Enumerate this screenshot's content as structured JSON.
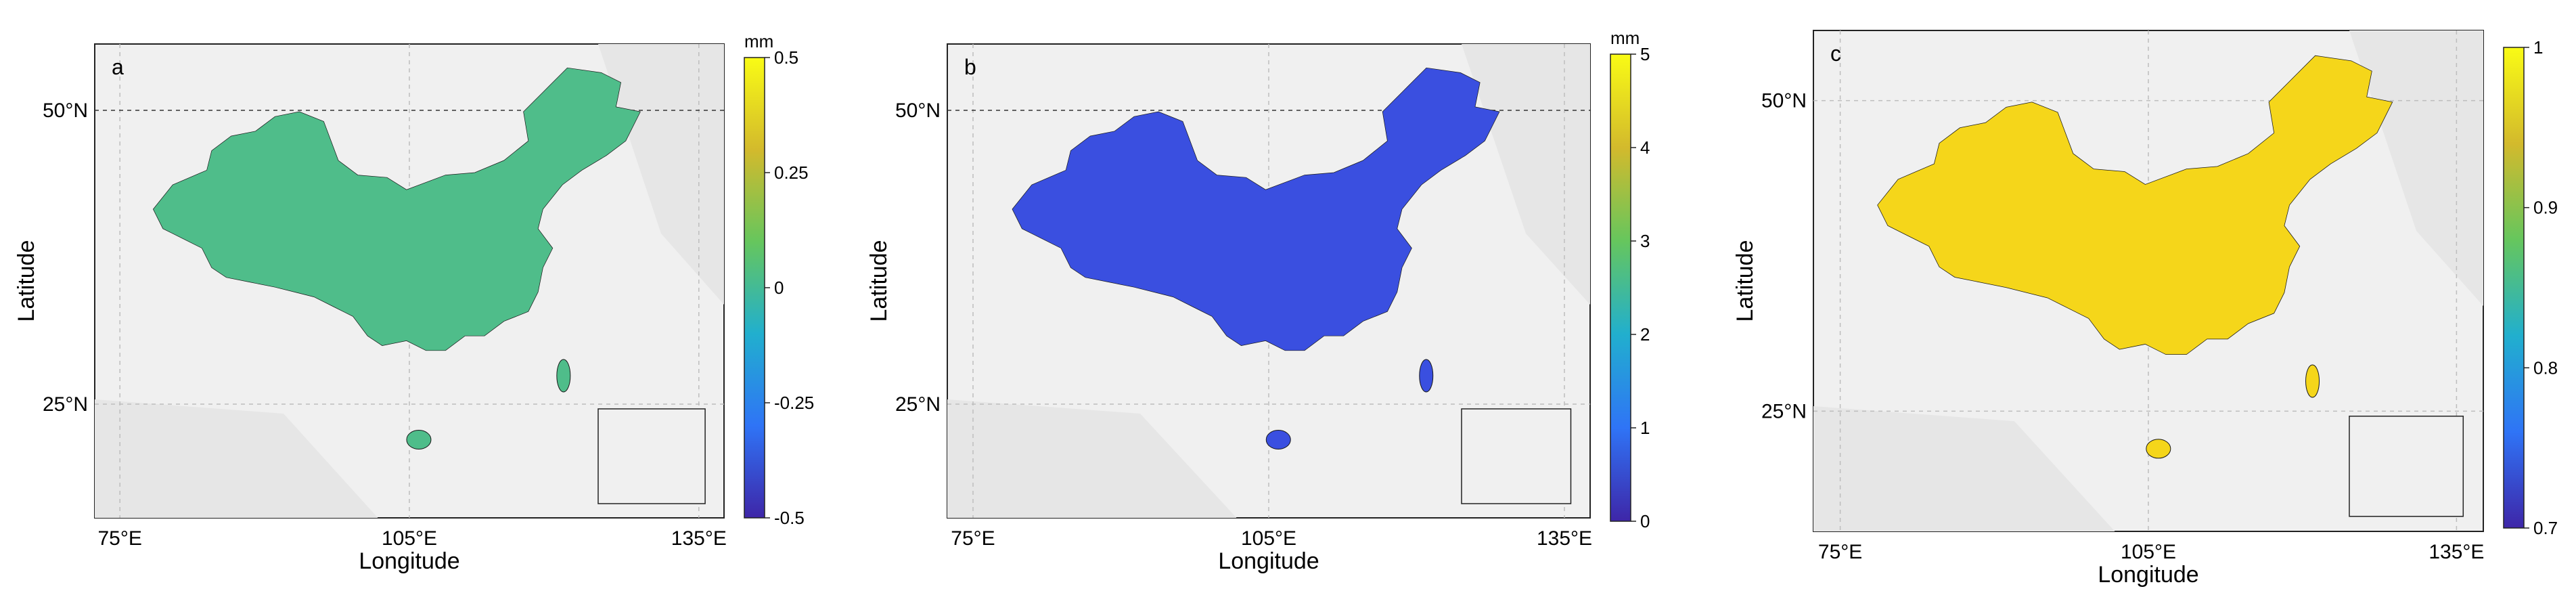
{
  "panels": [
    {
      "id": "a",
      "label": "a",
      "colorbar": {
        "unit": "mm",
        "ticks": [
          "0.5",
          "0.25",
          "0",
          "-0.25",
          "-0.5"
        ],
        "colors": [
          "#3e26a8",
          "#2f74f6",
          "#21afce",
          "#66c65d",
          "#d3ba2c",
          "#f9fb15"
        ]
      },
      "map_fill": "#4fbd8a",
      "x_ticks": [
        "75°E",
        "105°E",
        "135°E"
      ],
      "y_ticks": [
        "50°N",
        "25°N"
      ],
      "x_label": "Longitude",
      "y_label": "Latitude",
      "dashed_parallel": true,
      "inset": true
    },
    {
      "id": "b",
      "label": "b",
      "colorbar": {
        "unit": "mm",
        "ticks": [
          "5",
          "4",
          "3",
          "2",
          "1",
          "0"
        ],
        "colors": [
          "#3e26a8",
          "#2f74f6",
          "#21afce",
          "#66c65d",
          "#d3ba2c",
          "#f9fb15"
        ]
      },
      "map_fill": "#3a4fe0",
      "x_ticks": [
        "75°E",
        "105°E",
        "135°E"
      ],
      "y_ticks": [
        "50°N",
        "25°N"
      ],
      "x_label": "Longitude",
      "y_label": "Latitude",
      "dashed_parallel": true,
      "inset": true
    },
    {
      "id": "c",
      "label": "c",
      "colorbar": {
        "unit": "",
        "ticks": [
          "1",
          "0.9",
          "0.8",
          "0.7"
        ],
        "colors": [
          "#3e26a8",
          "#2f74f6",
          "#21afce",
          "#66c65d",
          "#d3ba2c",
          "#f9fb15"
        ]
      },
      "map_fill": "#f5d61a",
      "x_ticks": [
        "75°E",
        "105°E",
        "135°E"
      ],
      "y_ticks": [
        "50°N",
        "25°N"
      ],
      "x_label": "Longitude",
      "y_label": "Latitude",
      "dashed_parallel": false,
      "inset": true
    }
  ]
}
